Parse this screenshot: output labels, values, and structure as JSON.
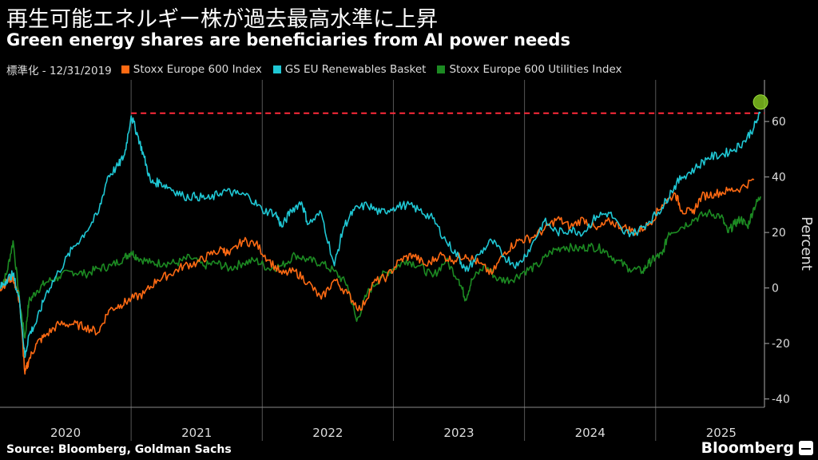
{
  "header": {
    "title_jp": "再生可能エネルギー株が過去最高水準に上昇",
    "title_en": "Green energy shares are beneficiaries from AI power needs"
  },
  "legend": {
    "note": "標準化 - 12/31/2019",
    "items": [
      {
        "label": "Stoxx Europe 600 Index",
        "color": "#ff6a13"
      },
      {
        "label": "GS EU Renewables Basket",
        "color": "#1fc7d4"
      },
      {
        "label": "Stoxx Europe 600 Utilities Index",
        "color": "#1c8a22"
      }
    ]
  },
  "footer": {
    "source": "Source: Bloomberg, Goldman Sachs",
    "brand": "Bloomberg"
  },
  "chart_data": {
    "type": "line",
    "title": "Green energy shares are beneficiaries from AI power needs",
    "xlabel": "",
    "ylabel": "Percent",
    "x_range": [
      2020.0,
      2025.83
    ],
    "ylim": [
      -43,
      75
    ],
    "yticks": [
      60,
      40,
      20,
      0,
      -20,
      -40
    ],
    "ytick_labels": [
      "60",
      "40",
      "20",
      "0",
      "-20",
      "-40"
    ],
    "xtick_labels": [
      {
        "label": "2020",
        "at": 2020.5
      },
      {
        "label": "2021",
        "at": 2021.5
      },
      {
        "label": "2022",
        "at": 2022.5
      },
      {
        "label": "2023",
        "at": 2023.5
      },
      {
        "label": "2024",
        "at": 2024.5
      },
      {
        "label": "2025",
        "at": 2025.5
      }
    ],
    "year_boundaries": [
      2021,
      2022,
      2023,
      2024,
      2025
    ],
    "reference_line": {
      "value": 63,
      "from": 2021.0,
      "to": 2025.83,
      "color": "#ff2a3a"
    },
    "highlight_point": {
      "x": 2025.8,
      "y": 67,
      "color": "#7fbf1f"
    },
    "series": [
      {
        "name": "Stoxx Europe 600 Index",
        "color": "#ff6a13",
        "points": [
          [
            2020.0,
            0
          ],
          [
            2020.05,
            2
          ],
          [
            2020.1,
            4
          ],
          [
            2020.15,
            -5
          ],
          [
            2020.19,
            -31
          ],
          [
            2020.22,
            -26
          ],
          [
            2020.28,
            -20
          ],
          [
            2020.35,
            -17
          ],
          [
            2020.45,
            -13
          ],
          [
            2020.55,
            -13
          ],
          [
            2020.65,
            -14
          ],
          [
            2020.75,
            -16
          ],
          [
            2020.83,
            -8
          ],
          [
            2020.92,
            -6
          ],
          [
            2021.0,
            -4
          ],
          [
            2021.1,
            -2
          ],
          [
            2021.2,
            3
          ],
          [
            2021.3,
            5
          ],
          [
            2021.4,
            8
          ],
          [
            2021.5,
            9
          ],
          [
            2021.6,
            12
          ],
          [
            2021.7,
            14
          ],
          [
            2021.75,
            12
          ],
          [
            2021.85,
            17
          ],
          [
            2021.95,
            16
          ],
          [
            2022.05,
            10
          ],
          [
            2022.15,
            5
          ],
          [
            2022.25,
            6
          ],
          [
            2022.35,
            2
          ],
          [
            2022.45,
            -4
          ],
          [
            2022.55,
            3
          ],
          [
            2022.65,
            -2
          ],
          [
            2022.75,
            -8
          ],
          [
            2022.85,
            2
          ],
          [
            2022.95,
            4
          ],
          [
            2023.05,
            10
          ],
          [
            2023.15,
            12
          ],
          [
            2023.25,
            8
          ],
          [
            2023.35,
            12
          ],
          [
            2023.45,
            10
          ],
          [
            2023.55,
            12
          ],
          [
            2023.65,
            9
          ],
          [
            2023.75,
            5
          ],
          [
            2023.85,
            13
          ],
          [
            2023.95,
            17
          ],
          [
            2024.05,
            18
          ],
          [
            2024.15,
            21
          ],
          [
            2024.25,
            25
          ],
          [
            2024.35,
            22
          ],
          [
            2024.45,
            25
          ],
          [
            2024.55,
            21
          ],
          [
            2024.65,
            24
          ],
          [
            2024.75,
            22
          ],
          [
            2024.85,
            20
          ],
          [
            2024.95,
            23
          ],
          [
            2025.05,
            30
          ],
          [
            2025.15,
            34
          ],
          [
            2025.2,
            28
          ],
          [
            2025.28,
            27
          ],
          [
            2025.35,
            33
          ],
          [
            2025.45,
            34
          ],
          [
            2025.55,
            35
          ],
          [
            2025.65,
            36
          ],
          [
            2025.75,
            39
          ]
        ]
      },
      {
        "name": "GS EU Renewables Basket",
        "color": "#1fc7d4",
        "points": [
          [
            2020.0,
            0
          ],
          [
            2020.05,
            3
          ],
          [
            2020.1,
            5
          ],
          [
            2020.15,
            -5
          ],
          [
            2020.19,
            -25
          ],
          [
            2020.22,
            -17
          ],
          [
            2020.28,
            -12
          ],
          [
            2020.35,
            -2
          ],
          [
            2020.45,
            6
          ],
          [
            2020.55,
            14
          ],
          [
            2020.65,
            20
          ],
          [
            2020.75,
            27
          ],
          [
            2020.82,
            40
          ],
          [
            2020.9,
            44
          ],
          [
            2020.95,
            48
          ],
          [
            2021.0,
            62
          ],
          [
            2021.05,
            55
          ],
          [
            2021.1,
            47
          ],
          [
            2021.15,
            38
          ],
          [
            2021.22,
            38
          ],
          [
            2021.3,
            36
          ],
          [
            2021.4,
            33
          ],
          [
            2021.5,
            33
          ],
          [
            2021.6,
            32
          ],
          [
            2021.7,
            35
          ],
          [
            2021.8,
            34
          ],
          [
            2021.9,
            33
          ],
          [
            2022.0,
            28
          ],
          [
            2022.1,
            27
          ],
          [
            2022.15,
            22
          ],
          [
            2022.22,
            28
          ],
          [
            2022.3,
            31
          ],
          [
            2022.35,
            23
          ],
          [
            2022.45,
            27
          ],
          [
            2022.55,
            8
          ],
          [
            2022.62,
            22
          ],
          [
            2022.7,
            28
          ],
          [
            2022.8,
            30
          ],
          [
            2022.9,
            27
          ],
          [
            2023.0,
            29
          ],
          [
            2023.1,
            30
          ],
          [
            2023.2,
            28
          ],
          [
            2023.3,
            25
          ],
          [
            2023.4,
            17
          ],
          [
            2023.5,
            11
          ],
          [
            2023.55,
            6
          ],
          [
            2023.65,
            12
          ],
          [
            2023.75,
            17
          ],
          [
            2023.85,
            11
          ],
          [
            2023.95,
            8
          ],
          [
            2024.05,
            15
          ],
          [
            2024.15,
            24
          ],
          [
            2024.25,
            20
          ],
          [
            2024.35,
            21
          ],
          [
            2024.45,
            20
          ],
          [
            2024.55,
            26
          ],
          [
            2024.65,
            27
          ],
          [
            2024.75,
            20
          ],
          [
            2024.85,
            20
          ],
          [
            2024.95,
            24
          ],
          [
            2025.05,
            29
          ],
          [
            2025.12,
            35
          ],
          [
            2025.2,
            40
          ],
          [
            2025.3,
            43
          ],
          [
            2025.4,
            47
          ],
          [
            2025.5,
            48
          ],
          [
            2025.6,
            50
          ],
          [
            2025.68,
            53
          ],
          [
            2025.75,
            58
          ],
          [
            2025.8,
            63
          ]
        ]
      },
      {
        "name": "Stoxx Europe 600 Utilities Index",
        "color": "#1c8a22",
        "points": [
          [
            2020.0,
            0
          ],
          [
            2020.05,
            5
          ],
          [
            2020.1,
            17
          ],
          [
            2020.15,
            -5
          ],
          [
            2020.19,
            -18
          ],
          [
            2020.22,
            -5
          ],
          [
            2020.28,
            -1
          ],
          [
            2020.35,
            2
          ],
          [
            2020.45,
            4
          ],
          [
            2020.55,
            6
          ],
          [
            2020.65,
            5
          ],
          [
            2020.75,
            7
          ],
          [
            2020.85,
            8
          ],
          [
            2020.95,
            11
          ],
          [
            2021.0,
            13
          ],
          [
            2021.05,
            11
          ],
          [
            2021.15,
            9
          ],
          [
            2021.25,
            9
          ],
          [
            2021.35,
            9
          ],
          [
            2021.45,
            11
          ],
          [
            2021.55,
            8
          ],
          [
            2021.65,
            9
          ],
          [
            2021.75,
            7
          ],
          [
            2021.85,
            9
          ],
          [
            2021.95,
            10
          ],
          [
            2022.05,
            7
          ],
          [
            2022.15,
            8
          ],
          [
            2022.25,
            12
          ],
          [
            2022.35,
            10
          ],
          [
            2022.45,
            9
          ],
          [
            2022.55,
            6
          ],
          [
            2022.65,
            1
          ],
          [
            2022.72,
            -12
          ],
          [
            2022.8,
            -2
          ],
          [
            2022.9,
            4
          ],
          [
            2023.0,
            7
          ],
          [
            2023.1,
            10
          ],
          [
            2023.2,
            8
          ],
          [
            2023.3,
            4
          ],
          [
            2023.4,
            10
          ],
          [
            2023.5,
            3
          ],
          [
            2023.55,
            -4
          ],
          [
            2023.6,
            3
          ],
          [
            2023.7,
            8
          ],
          [
            2023.8,
            3
          ],
          [
            2023.9,
            3
          ],
          [
            2024.0,
            6
          ],
          [
            2024.1,
            8
          ],
          [
            2024.2,
            13
          ],
          [
            2024.3,
            15
          ],
          [
            2024.4,
            14
          ],
          [
            2024.5,
            15
          ],
          [
            2024.6,
            14
          ],
          [
            2024.7,
            10
          ],
          [
            2024.8,
            7
          ],
          [
            2024.9,
            6
          ],
          [
            2024.95,
            9
          ],
          [
            2025.0,
            11
          ],
          [
            2025.05,
            12
          ],
          [
            2025.1,
            20
          ],
          [
            2025.2,
            22
          ],
          [
            2025.3,
            25
          ],
          [
            2025.4,
            27
          ],
          [
            2025.5,
            26
          ],
          [
            2025.55,
            20
          ],
          [
            2025.6,
            23
          ],
          [
            2025.65,
            25
          ],
          [
            2025.7,
            22
          ],
          [
            2025.75,
            29
          ],
          [
            2025.8,
            33
          ]
        ]
      }
    ]
  }
}
